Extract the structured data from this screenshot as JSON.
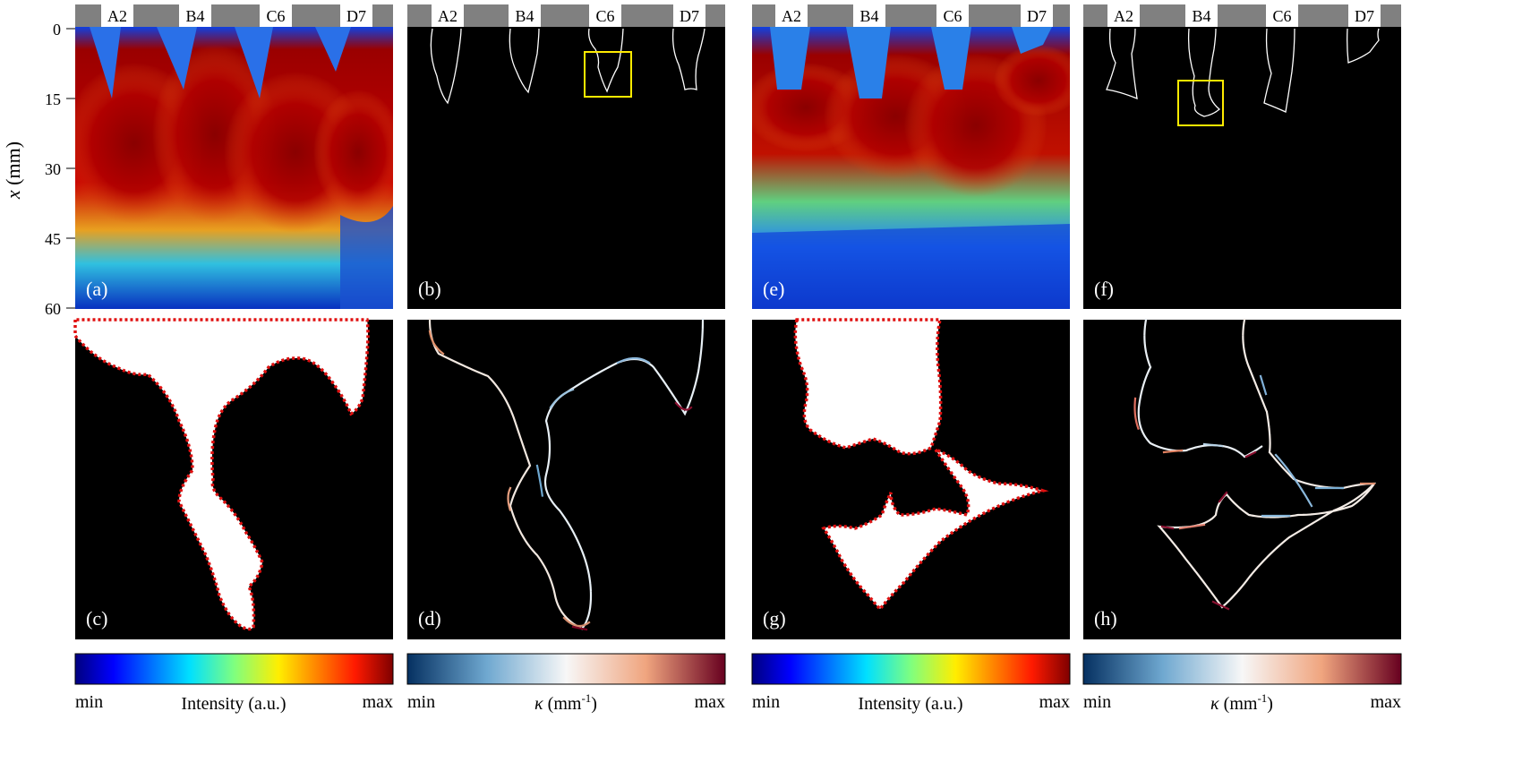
{
  "y_axis": {
    "label_var": "x",
    "label_unit": " (mm)",
    "ticks": [
      "0",
      "15",
      "30",
      "45",
      "60"
    ]
  },
  "channel_labels": [
    "A2",
    "B4",
    "C6",
    "D7"
  ],
  "panels": [
    {
      "id": "a",
      "label": "(a)"
    },
    {
      "id": "b",
      "label": "(b)"
    },
    {
      "id": "c",
      "label": "(c)"
    },
    {
      "id": "d",
      "label": "(d)"
    },
    {
      "id": "e",
      "label": "(e)"
    },
    {
      "id": "f",
      "label": "(f)"
    },
    {
      "id": "g",
      "label": "(g)"
    },
    {
      "id": "h",
      "label": "(h)"
    }
  ],
  "colorbars": [
    {
      "type": "jet",
      "min": "min",
      "max": "max",
      "label": "Intensity (a.u.)"
    },
    {
      "type": "diverging",
      "min": "min",
      "max": "max",
      "label_var": "κ",
      "label_unit": " (mm",
      "label_exp": "-1",
      "label_close": ")"
    },
    {
      "type": "jet",
      "min": "min",
      "max": "max",
      "label": "Intensity (a.u.)"
    },
    {
      "type": "diverging",
      "min": "min",
      "max": "max",
      "label_var": "κ",
      "label_unit": " (mm",
      "label_exp": "-1",
      "label_close": ")"
    }
  ],
  "colors": {
    "mask_header": "#808080",
    "highlight_box": "#ffeb00",
    "interface_dots": "#e01010",
    "panel_background": "#000000"
  }
}
